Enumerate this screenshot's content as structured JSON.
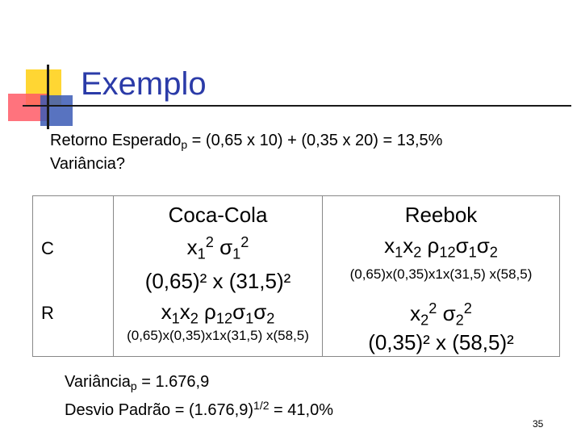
{
  "slide": {
    "title": "Exemplo",
    "line1": {
      "prefix": "Retorno Esperado",
      "sub": "p",
      "rest": " = (0,65 x 10) + (0,35 x 20) = 13,5%"
    },
    "line2": "Variância?"
  },
  "table": {
    "headers": [
      "Coca-Cola",
      "Reebok"
    ],
    "rows": [
      {
        "label": "C"
      },
      {
        "label": "R"
      }
    ],
    "cc_var_symbolic": {
      "x": "x",
      "x_sub": "1",
      "x_sup": "2",
      "sigma": "σ",
      "s_sub": "1",
      "s_sup": "2"
    },
    "cc_var_numeric": "(0,65)² x (31,5)²",
    "cov_symbolic": {
      "x1": "x",
      "x1_sub": "1",
      "x2": "x",
      "x2_sub": "2",
      "rho": "ρ",
      "rho_sub": "12",
      "s1": "σ",
      "s1_sub": "1",
      "s2": "σ",
      "s2_sub": "2"
    },
    "cov_numeric": "(0,65)x(0,35)x1x(31,5) x(58,5)",
    "rb_var_symbolic": {
      "x": "x",
      "x_sub": "2",
      "x_sup": "2",
      "sigma": "σ",
      "s_sub": "2",
      "s_sup": "2"
    },
    "rb_var_numeric": "(0,35)² x (58,5)²"
  },
  "footer": {
    "var_prefix": "Variância",
    "var_sub": "p",
    "var_rest": " = 1.676,9",
    "dp_prefix": "Desvio Padrão = (1.676,9)",
    "dp_sup": "1/2",
    "dp_rest": " = 41,0%"
  },
  "page_number": "35",
  "colors": {
    "title": "#2b3ba8",
    "accent_yellow": "#ffd633",
    "accent_red": "#ff5a66",
    "accent_blue": "#3b5bb5"
  }
}
